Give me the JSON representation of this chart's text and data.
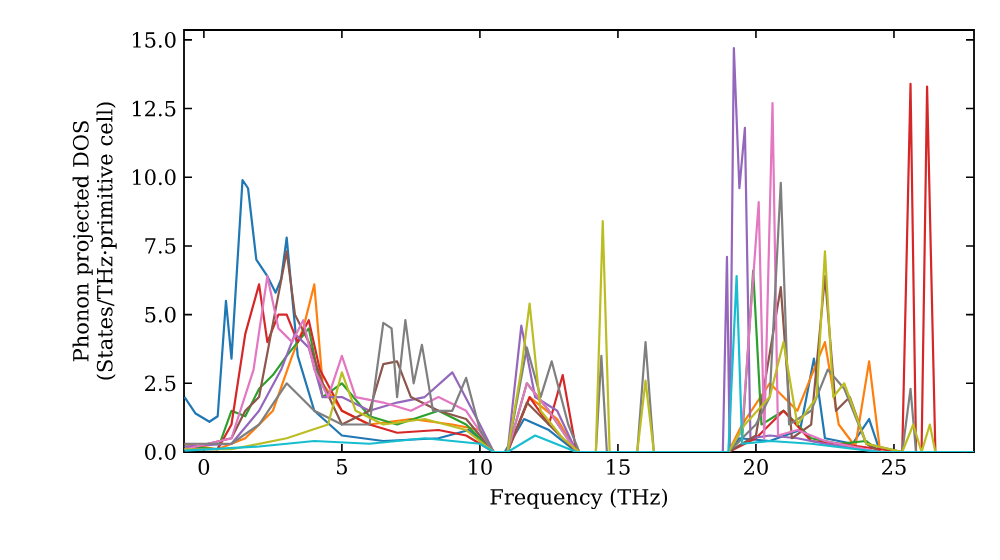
{
  "chart_data": {
    "type": "line",
    "xlabel": "Frequency (THz)",
    "ylabel": "Phonon projected DOS (States/THz·primitive cell)",
    "xlim": [
      -0.72,
      27.9
    ],
    "ylim": [
      0,
      15.36
    ],
    "xticks": [
      0,
      5,
      10,
      15,
      20,
      25
    ],
    "yticks": [
      {
        "value": 0,
        "label": "0.0"
      },
      {
        "value": 2.5,
        "label": "2.5"
      },
      {
        "value": 5,
        "label": "5.0"
      },
      {
        "value": 7.5,
        "label": "7.5"
      },
      {
        "value": 10,
        "label": "10.0"
      },
      {
        "value": 12.5,
        "label": "12.5"
      },
      {
        "value": 15,
        "label": "15.0"
      }
    ],
    "marker": "none",
    "line_style": "solid",
    "series": [
      {
        "color": "#1f77b4",
        "x": [
          -0.7,
          -0.3,
          0.2,
          0.5,
          0.8,
          1.0,
          1.4,
          1.6,
          1.9,
          2.3,
          2.6,
          2.8,
          3.0,
          3.4,
          4.0,
          5.0,
          6.5,
          8.5,
          9.6,
          10.5,
          10.9,
          11.6,
          12.5,
          13.5,
          19.0,
          19.4,
          20.5,
          21.6,
          22.1,
          22.5,
          23.5,
          24.1,
          24.5,
          27.9
        ],
        "values": [
          2.0,
          1.4,
          1.1,
          1.3,
          5.5,
          3.4,
          9.9,
          9.6,
          7.0,
          6.4,
          5.8,
          6.3,
          7.8,
          3.5,
          1.5,
          0.6,
          0.4,
          0.5,
          0.8,
          0,
          0,
          1.2,
          0.8,
          0,
          0,
          0.5,
          0.4,
          0.8,
          3.4,
          0.5,
          0.3,
          1.2,
          0,
          0
        ]
      },
      {
        "color": "#ff7f0e",
        "x": [
          -0.7,
          0.5,
          1.5,
          2.5,
          3.2,
          3.6,
          4.0,
          4.3,
          5.0,
          6.0,
          7.5,
          9.0,
          10.0,
          10.5,
          11.0,
          11.8,
          12.8,
          13.5,
          19.0,
          19.5,
          20.5,
          21.5,
          22.5,
          23.0,
          23.6,
          24.1,
          24.5,
          27.9
        ],
        "values": [
          0.3,
          0.1,
          0.5,
          1.5,
          3.5,
          4.5,
          6.1,
          2.5,
          1.5,
          1.0,
          1.2,
          1.0,
          0.8,
          0,
          0,
          2.0,
          1.2,
          0,
          0,
          1.0,
          2.5,
          1.5,
          4.0,
          1.0,
          0.2,
          3.3,
          0,
          0
        ]
      },
      {
        "color": "#2ca02c",
        "x": [
          -0.7,
          0.5,
          1.0,
          1.5,
          2.0,
          2.5,
          3.0,
          3.8,
          4.3,
          5.0,
          6.0,
          7.0,
          8.5,
          9.5,
          10.5,
          11.0,
          11.7,
          12.5,
          13.5,
          19.0,
          19.5,
          19.9,
          20.2,
          21.0,
          22.0,
          23.0,
          24.0,
          24.5,
          27.9
        ],
        "values": [
          0.2,
          0.1,
          1.5,
          1.3,
          2.3,
          2.8,
          3.5,
          4.5,
          2.0,
          2.5,
          1.3,
          1.0,
          1.5,
          1.0,
          0,
          0,
          2.5,
          1.5,
          0,
          0,
          0.5,
          6.6,
          1.0,
          1.5,
          0.5,
          0.3,
          0.4,
          0,
          0
        ]
      },
      {
        "color": "#d62728",
        "x": [
          -0.7,
          0.5,
          1.0,
          1.5,
          2.0,
          2.3,
          2.7,
          3.0,
          3.4,
          3.8,
          4.2,
          5.0,
          6.0,
          7.0,
          8.5,
          9.5,
          10.5,
          11.0,
          11.8,
          12.5,
          13.0,
          13.5,
          19.0,
          20.0,
          21.0,
          22.0,
          23.0,
          25.3,
          25.6,
          25.8,
          26.0,
          26.2,
          26.5,
          27.9
        ],
        "values": [
          0.1,
          0.1,
          1.0,
          4.3,
          6.1,
          4.0,
          5.0,
          5.0,
          4.0,
          4.8,
          3.0,
          1.5,
          1.0,
          0.7,
          0.8,
          0.6,
          0,
          0,
          2.0,
          1.0,
          2.8,
          0,
          0,
          0.5,
          1.5,
          0.4,
          0.3,
          0,
          13.4,
          0,
          0,
          13.3,
          0,
          0
        ]
      },
      {
        "color": "#9467bd",
        "x": [
          -0.7,
          1.0,
          2.0,
          2.8,
          3.3,
          3.8,
          4.3,
          5.0,
          6.0,
          7.0,
          8.0,
          9.0,
          10.0,
          10.5,
          11.0,
          11.5,
          12.0,
          12.8,
          13.5,
          18.8,
          18.95,
          19.05,
          19.2,
          19.4,
          19.6,
          19.8,
          20.5,
          21.5,
          22.5,
          24.5,
          27.9
        ],
        "values": [
          0.2,
          0.3,
          1.5,
          3.0,
          4.3,
          3.8,
          2.0,
          2.0,
          1.5,
          1.8,
          2.0,
          2.9,
          1.0,
          0,
          0,
          4.6,
          2.0,
          1.5,
          0,
          0,
          7.1,
          0,
          14.7,
          9.6,
          11.8,
          0.5,
          0.6,
          0.5,
          0.3,
          0,
          0
        ]
      },
      {
        "color": "#8c564b",
        "x": [
          -0.7,
          1.0,
          1.5,
          2.0,
          2.6,
          3.0,
          3.3,
          3.8,
          4.3,
          5.0,
          6.0,
          6.5,
          7.0,
          7.5,
          8.5,
          9.5,
          10.5,
          11.0,
          11.7,
          12.5,
          13.5,
          19.0,
          20.0,
          20.9,
          21.3,
          22.0,
          22.5,
          22.9,
          23.4,
          24.0,
          24.5,
          27.9
        ],
        "values": [
          0.1,
          0.5,
          1.5,
          2.0,
          5.2,
          7.3,
          5.0,
          4.0,
          2.5,
          1.0,
          1.5,
          3.2,
          3.3,
          2.0,
          1.5,
          1.2,
          0,
          0,
          1.8,
          1.0,
          0,
          0,
          0.6,
          6.0,
          0.5,
          1.0,
          6.4,
          1.5,
          2.0,
          0.3,
          0,
          0
        ]
      },
      {
        "color": "#e377c2",
        "x": [
          -0.7,
          1.0,
          1.8,
          2.3,
          2.7,
          3.2,
          3.6,
          4.0,
          4.5,
          5.0,
          5.5,
          6.5,
          7.5,
          8.5,
          9.5,
          10.5,
          11.0,
          11.7,
          12.5,
          13.5,
          19.0,
          19.5,
          20.1,
          20.3,
          20.6,
          20.8,
          21.5,
          22.5,
          24.5,
          27.9
        ],
        "values": [
          0.1,
          0.5,
          3.0,
          6.4,
          4.5,
          4.0,
          4.8,
          3.0,
          2.0,
          3.5,
          2.0,
          1.8,
          1.5,
          2.0,
          1.5,
          0,
          0,
          2.5,
          1.5,
          0,
          0,
          0.8,
          9.1,
          0.5,
          12.7,
          0.6,
          0.8,
          0.4,
          0,
          0
        ]
      },
      {
        "color": "#7f7f7f",
        "x": [
          -0.7,
          1.0,
          2.0,
          3.0,
          4.0,
          5.0,
          6.0,
          6.5,
          6.8,
          7.0,
          7.3,
          7.6,
          7.9,
          8.3,
          9.0,
          9.5,
          10.0,
          10.5,
          11.0,
          11.7,
          12.2,
          12.6,
          13.2,
          13.6,
          14.2,
          14.4,
          14.6,
          15.7,
          16.0,
          16.3,
          19.0,
          20.0,
          20.5,
          20.9,
          21.2,
          22.0,
          22.6,
          23.2,
          24.0,
          25.3,
          25.6,
          25.8,
          27.9
        ],
        "values": [
          0.3,
          0.3,
          1.0,
          2.5,
          1.5,
          1.0,
          1.0,
          4.7,
          4.5,
          2.0,
          4.8,
          2.5,
          3.9,
          1.5,
          1.5,
          2.7,
          0.8,
          0,
          0,
          3.8,
          2.0,
          3.3,
          1.0,
          0,
          0,
          3.5,
          0,
          0,
          4.0,
          0,
          0,
          1.0,
          2.0,
          9.8,
          1.0,
          1.5,
          3.0,
          2.3,
          0.3,
          0,
          2.3,
          0,
          0
        ]
      },
      {
        "color": "#bcbd22",
        "x": [
          -0.7,
          1.0,
          3.0,
          4.5,
          5.0,
          5.5,
          6.5,
          8.0,
          9.5,
          10.5,
          11.0,
          11.5,
          11.8,
          12.2,
          13.0,
          13.6,
          14.2,
          14.45,
          14.7,
          15.7,
          16.0,
          16.3,
          19.0,
          19.6,
          20.5,
          21.0,
          21.5,
          22.2,
          22.5,
          22.8,
          23.2,
          24.0,
          25.3,
          25.7,
          26.0,
          26.3,
          26.5,
          27.9
        ],
        "values": [
          0.1,
          0.1,
          0.5,
          1.0,
          2.9,
          1.5,
          1.0,
          1.2,
          0.8,
          0,
          0,
          3.0,
          5.4,
          1.5,
          0.5,
          0,
          0,
          8.4,
          0,
          0,
          2.6,
          0,
          0,
          1.0,
          2.0,
          4.0,
          1.0,
          2.0,
          7.3,
          2.0,
          2.5,
          0.3,
          0,
          1.0,
          0,
          1.0,
          0,
          0
        ]
      },
      {
        "color": "#17becf",
        "x": [
          -0.7,
          2.0,
          4.0,
          6.0,
          8.0,
          10.0,
          10.5,
          11.0,
          12.0,
          13.5,
          19.0,
          19.3,
          19.5,
          20.5,
          22.0,
          24.5,
          27.9
        ],
        "values": [
          0.05,
          0.2,
          0.4,
          0.3,
          0.5,
          0.3,
          0,
          0,
          0.6,
          0,
          0,
          6.4,
          0.3,
          0.4,
          0.3,
          0,
          0
        ]
      }
    ]
  }
}
